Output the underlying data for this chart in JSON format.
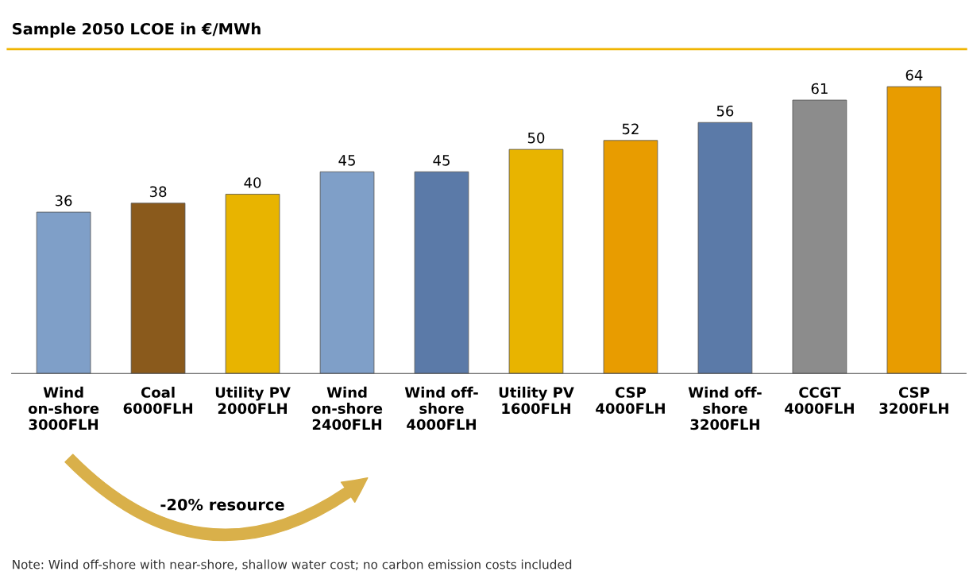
{
  "chart_data": {
    "type": "bar",
    "title": "Sample 2050 LCOE in €/MWh",
    "categories": [
      "Wind\non-shore\n3000FLH",
      "Coal\n6000FLH",
      "Utility PV\n2000FLH",
      "Wind\non-shore\n2400FLH",
      "Wind off-\nshore\n4000FLH",
      "Utility PV\n1600FLH",
      "CSP\n4000FLH",
      "Wind off-\nshore\n3200FLH",
      "CCGT\n4000FLH",
      "CSP\n3200FLH"
    ],
    "values": [
      36,
      38,
      40,
      45,
      45,
      50,
      52,
      56,
      61,
      64
    ],
    "colors": [
      "#7f9fc8",
      "#8a5a1c",
      "#e8b400",
      "#7f9fc8",
      "#5b7aa8",
      "#e8b400",
      "#e89c00",
      "#5b7aa8",
      "#8c8c8c",
      "#e89c00"
    ],
    "data_labels": true,
    "annotations": [
      "-20% resource",
      "Note: Wind off-shore with near-shore, shallow water cost; no carbon emission costs included"
    ]
  }
}
